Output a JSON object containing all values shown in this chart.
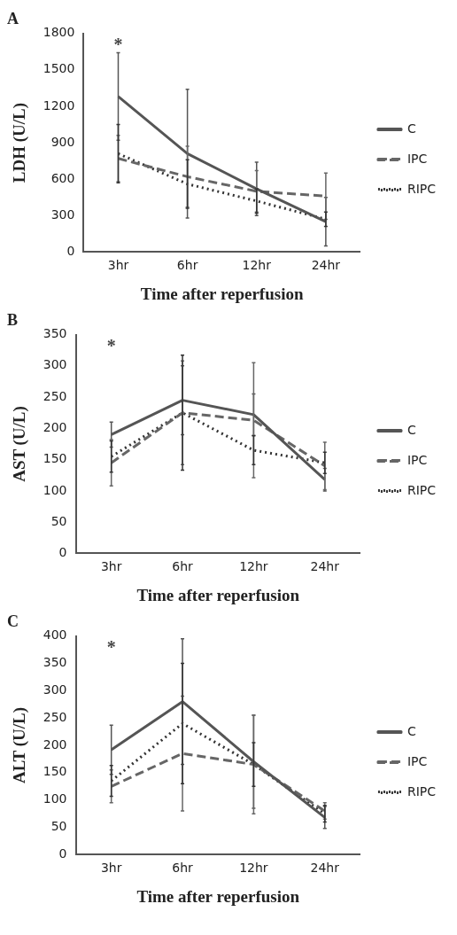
{
  "chart_data": [
    {
      "type": "line",
      "title": "A",
      "xlabel": "Time after reperfusion",
      "ylabel": "LDH (U/L)",
      "categories": [
        "3hr",
        "6hr",
        "12hr",
        "24hr"
      ],
      "ylim": [
        0,
        1800
      ],
      "yticks": [
        0,
        300,
        600,
        900,
        1200,
        1500,
        1800
      ],
      "grid": false,
      "legend": "right",
      "marker": "none",
      "annotations": [
        "*"
      ],
      "series": [
        {
          "name": "C",
          "color": "#555555",
          "line_style": "solid",
          "values": [
            1280,
            810,
            520,
            250
          ],
          "errors": [
            360,
            530,
            220,
            200
          ]
        },
        {
          "name": "IPC",
          "color": "#666666",
          "line_style": "dashed",
          "values": [
            770,
            620,
            500,
            460
          ],
          "errors": [
            190,
            250,
            170,
            190
          ]
        },
        {
          "name": "RIPC",
          "color": "#333333",
          "line_style": "dotted",
          "values": [
            810,
            560,
            420,
            270
          ],
          "errors": [
            240,
            200,
            100,
            60
          ]
        }
      ]
    },
    {
      "type": "line",
      "title": "B",
      "xlabel": "Time after reperfusion",
      "ylabel": "AST (U/L)",
      "categories": [
        "3hr",
        "6hr",
        "12hr",
        "24hr"
      ],
      "ylim": [
        0,
        350
      ],
      "yticks": [
        0,
        50,
        100,
        150,
        200,
        250,
        300,
        350
      ],
      "grid": false,
      "legend": "right",
      "marker": "none",
      "annotations": [
        "*"
      ],
      "series": [
        {
          "name": "C",
          "color": "#555555",
          "line_style": "solid",
          "values": [
            190,
            245,
            222,
            118
          ],
          "errors": [
            20,
            55,
            33,
            18
          ]
        },
        {
          "name": "IPC",
          "color": "#666666",
          "line_style": "dashed",
          "values": [
            145,
            225,
            213,
            140
          ],
          "errors": [
            37,
            83,
            92,
            38
          ]
        },
        {
          "name": "RIPC",
          "color": "#333333",
          "line_style": "dotted",
          "values": [
            155,
            225,
            165,
            145
          ],
          "errors": [
            25,
            92,
            23,
            17
          ]
        }
      ]
    },
    {
      "type": "line",
      "title": "C",
      "xlabel": "Time after reperfusion",
      "ylabel": "ALT (U/L)",
      "categories": [
        "3hr",
        "6hr",
        "12hr",
        "24hr"
      ],
      "ylim": [
        0,
        400
      ],
      "yticks": [
        0,
        50,
        100,
        150,
        200,
        250,
        300,
        350,
        400
      ],
      "grid": false,
      "legend": "right",
      "marker": "none",
      "annotations": [
        "*"
      ],
      "series": [
        {
          "name": "C",
          "color": "#555555",
          "line_style": "solid",
          "values": [
            192,
            280,
            170,
            68
          ],
          "errors": [
            45,
            115,
            85,
            20
          ]
        },
        {
          "name": "IPC",
          "color": "#666666",
          "line_style": "dashed",
          "values": [
            125,
            185,
            165,
            80
          ],
          "errors": [
            30,
            105,
            90,
            15
          ]
        },
        {
          "name": "RIPC",
          "color": "#333333",
          "line_style": "dotted",
          "values": [
            135,
            240,
            165,
            75
          ],
          "errors": [
            28,
            110,
            40,
            15
          ]
        }
      ]
    }
  ]
}
